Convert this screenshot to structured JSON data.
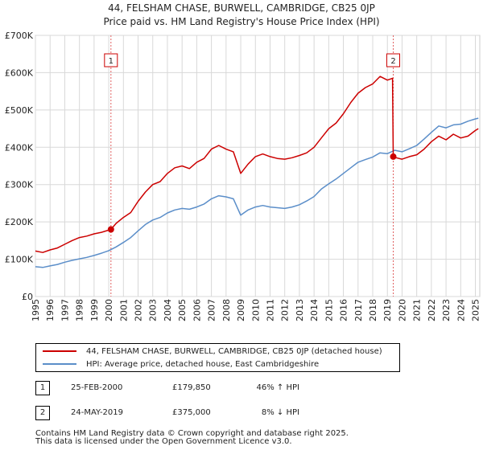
{
  "title_line1": "44, FELSHAM CHASE, BURWELL, CAMBRIDGE, CB25 0JP",
  "title_line2": "Price paid vs. HM Land Registry's House Price Index (HPI)",
  "colors": {
    "property": "#cc0000",
    "hpi": "#5b8ec9",
    "sale_line": "#e06060",
    "grid": "#d8d8d8"
  },
  "chart_data": {
    "type": "line",
    "title": "Price paid vs. HM Land Registry's House Price Index (HPI)",
    "xlabel": "",
    "ylabel": "",
    "xlim": [
      1995,
      2025.3
    ],
    "ylim": [
      0,
      700000
    ],
    "grid": true,
    "y_ticks": [
      {
        "value": 0,
        "label": "£0"
      },
      {
        "value": 100000,
        "label": "£100K"
      },
      {
        "value": 200000,
        "label": "£200K"
      },
      {
        "value": 300000,
        "label": "£300K"
      },
      {
        "value": 400000,
        "label": "£400K"
      },
      {
        "value": 500000,
        "label": "£500K"
      },
      {
        "value": 600000,
        "label": "£600K"
      },
      {
        "value": 700000,
        "label": "£700K"
      }
    ],
    "x_ticks": [
      "1995",
      "1996",
      "1997",
      "1998",
      "1999",
      "2000",
      "2001",
      "2002",
      "2003",
      "2004",
      "2005",
      "2006",
      "2007",
      "2008",
      "2009",
      "2010",
      "2011",
      "2012",
      "2013",
      "2014",
      "2015",
      "2016",
      "2017",
      "2018",
      "2019",
      "2020",
      "2021",
      "2022",
      "2023",
      "2024",
      "2025"
    ],
    "series": [
      {
        "name": "44, FELSHAM CHASE, BURWELL, CAMBRIDGE, CB25 0JP (detached house)",
        "x": [
          1995.0,
          1995.5,
          1996.0,
          1996.5,
          1997.0,
          1997.5,
          1998.0,
          1998.5,
          1999.0,
          1999.5,
          2000.15,
          2000.5,
          2001.0,
          2001.5,
          2002.0,
          2002.5,
          2003.0,
          2003.5,
          2004.0,
          2004.5,
          2005.0,
          2005.5,
          2006.0,
          2006.5,
          2007.0,
          2007.5,
          2008.0,
          2008.5,
          2009.0,
          2009.5,
          2010.0,
          2010.5,
          2011.0,
          2011.5,
          2012.0,
          2012.5,
          2013.0,
          2013.5,
          2014.0,
          2014.5,
          2015.0,
          2015.5,
          2016.0,
          2016.5,
          2017.0,
          2017.5,
          2018.0,
          2018.5,
          2019.0,
          2019.35,
          2019.4,
          2019.6,
          2020.0,
          2020.5,
          2021.0,
          2021.5,
          2022.0,
          2022.5,
          2023.0,
          2023.5,
          2024.0,
          2024.5,
          2025.0,
          2025.2
        ],
        "values": [
          122000,
          118000,
          125000,
          130000,
          140000,
          150000,
          158000,
          162000,
          168000,
          172000,
          179850,
          196000,
          212000,
          225000,
          255000,
          280000,
          300000,
          308000,
          330000,
          345000,
          350000,
          343000,
          360000,
          370000,
          395000,
          405000,
          395000,
          388000,
          330000,
          355000,
          375000,
          382000,
          375000,
          370000,
          368000,
          372000,
          378000,
          385000,
          400000,
          425000,
          450000,
          465000,
          490000,
          520000,
          545000,
          560000,
          570000,
          590000,
          580000,
          585000,
          375000,
          372000,
          368000,
          375000,
          380000,
          395000,
          415000,
          430000,
          420000,
          435000,
          425000,
          430000,
          445000,
          450000
        ]
      },
      {
        "name": "HPI: Average price, detached house, East Cambridgeshire",
        "x": [
          1995.0,
          1995.5,
          1996.0,
          1996.5,
          1997.0,
          1997.5,
          1998.0,
          1998.5,
          1999.0,
          1999.5,
          2000.0,
          2000.5,
          2001.0,
          2001.5,
          2002.0,
          2002.5,
          2003.0,
          2003.5,
          2004.0,
          2004.5,
          2005.0,
          2005.5,
          2006.0,
          2006.5,
          2007.0,
          2007.5,
          2008.0,
          2008.5,
          2009.0,
          2009.5,
          2010.0,
          2010.5,
          2011.0,
          2011.5,
          2012.0,
          2012.5,
          2013.0,
          2013.5,
          2014.0,
          2014.5,
          2015.0,
          2015.5,
          2016.0,
          2016.5,
          2017.0,
          2017.5,
          2018.0,
          2018.5,
          2019.0,
          2019.5,
          2020.0,
          2020.5,
          2021.0,
          2021.5,
          2022.0,
          2022.5,
          2023.0,
          2023.5,
          2024.0,
          2024.5,
          2025.0,
          2025.2
        ],
        "values": [
          80000,
          78000,
          82000,
          86000,
          92000,
          97000,
          101000,
          105000,
          110000,
          116000,
          123000,
          133000,
          145000,
          158000,
          176000,
          193000,
          205000,
          212000,
          224000,
          232000,
          236000,
          234000,
          240000,
          248000,
          262000,
          270000,
          267000,
          262000,
          218000,
          232000,
          240000,
          244000,
          240000,
          238000,
          236000,
          240000,
          246000,
          256000,
          268000,
          288000,
          302000,
          315000,
          330000,
          345000,
          360000,
          367000,
          374000,
          385000,
          383000,
          392000,
          388000,
          396000,
          405000,
          422000,
          440000,
          457000,
          452000,
          460000,
          462000,
          470000,
          476000,
          478000
        ]
      }
    ],
    "sales": [
      {
        "label": "1",
        "x": 2000.15,
        "value": 179850
      },
      {
        "label": "2",
        "x": 2019.4,
        "value": 375000
      }
    ]
  },
  "legend": {
    "property_label": "44, FELSHAM CHASE, BURWELL, CAMBRIDGE, CB25 0JP (detached house)",
    "hpi_label": "HPI: Average price, detached house, East Cambridgeshire"
  },
  "transactions": [
    {
      "num": "1",
      "date": "25-FEB-2000",
      "price": "£179,850",
      "hpi": "46% ↑ HPI"
    },
    {
      "num": "2",
      "date": "24-MAY-2019",
      "price": "£375,000",
      "hpi": "8% ↓ HPI"
    }
  ],
  "footer": {
    "line1": "Contains HM Land Registry data © Crown copyright and database right 2025.",
    "line2": "This data is licensed under the Open Government Licence v3.0."
  }
}
